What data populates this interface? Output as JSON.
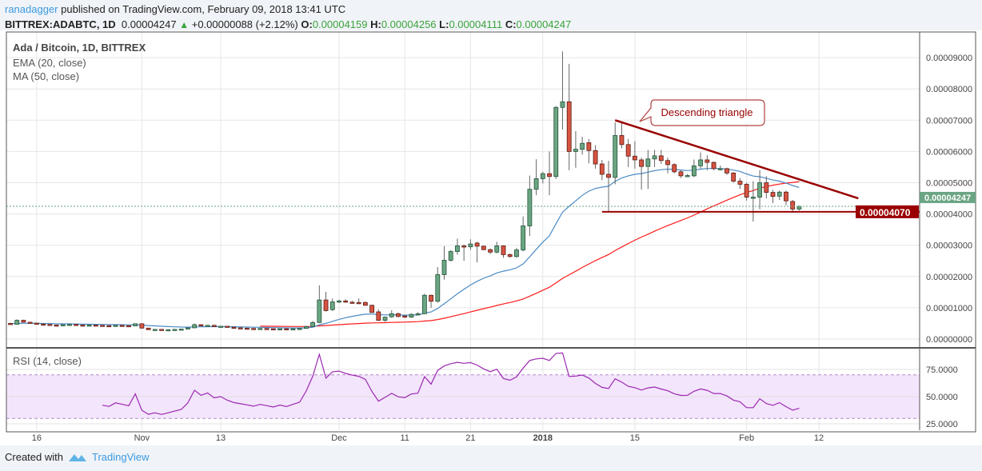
{
  "header": {
    "author": "ranadagger",
    "published_text": "published on TradingView.com, February 09, 2018 13:41 UTC",
    "symbol": "BITTREX:ADABTC, 1D",
    "last": "0.00004247",
    "change": "+0.00000088 (+2.12%)",
    "o_label": "O:",
    "o": "0.00004159",
    "h_label": "H:",
    "h": "0.00004256",
    "l_label": "L:",
    "l": "0.00004111",
    "c_label": "C:",
    "c": "0.00004247",
    "change_icon": "triangle-up-icon"
  },
  "legend": {
    "title": "Ada / Bitcoin, 1D, BITTREX",
    "ema": "EMA (20, close)",
    "ma": "MA (50, close)",
    "rsi": "RSI (14, close)"
  },
  "colors": {
    "up": "#6ba583",
    "down": "#d75442",
    "ema": "#4a8ac4",
    "ma": "#ff1a1a",
    "rsi": "#9c27b0",
    "rsi_band": "#f3e5fc",
    "trend": "#990000",
    "last_price": "#6ba583"
  },
  "footer": {
    "created_with": "Created with",
    "brand": "TradingView"
  },
  "chart_data": {
    "type": "candlestick",
    "price_ticks": [
      "0.00009000",
      "0.00008000",
      "0.00007000",
      "0.00006000",
      "0.00005000",
      "0.00004000",
      "0.00003000",
      "0.00002000",
      "0.00001000",
      "0.00000000"
    ],
    "price_tick_values": [
      9e-05,
      8e-05,
      7e-05,
      6e-05,
      5e-05,
      4e-05,
      3e-05,
      2e-05,
      1e-05,
      0
    ],
    "ylim": [
      0,
      9.2e-05
    ],
    "last_price_label": "0.00004247",
    "last_price": 4.247e-05,
    "support_label": "0.00004070",
    "support": 4.07e-05,
    "support_from": "2018-01-10",
    "trendline": {
      "from": [
        "2018-01-12",
        7e-05
      ],
      "to": [
        "2018-02-18",
        4.5e-05
      ]
    },
    "annotation": {
      "text": "Descending triangle"
    },
    "date_ticks": [
      {
        "label": "16",
        "date": "2017-10-16"
      },
      {
        "label": "Nov",
        "date": "2017-11-01"
      },
      {
        "label": "13",
        "date": "2017-11-13"
      },
      {
        "label": "Dec",
        "date": "2017-12-01"
      },
      {
        "label": "11",
        "date": "2017-12-11"
      },
      {
        "label": "21",
        "date": "2017-12-21"
      },
      {
        "label": "2018",
        "date": "2018-01-01"
      },
      {
        "label": "15",
        "date": "2018-01-15"
      },
      {
        "label": "Feb",
        "date": "2018-02-01"
      },
      {
        "label": "12",
        "date": "2018-02-12"
      }
    ],
    "rsi_ticks": [
      "75.0000",
      "50.0000",
      "25.0000"
    ],
    "rsi_tick_values": [
      75,
      50,
      25
    ],
    "rsi_bands": [
      30,
      70
    ],
    "indicators": {
      "ema_period": 20,
      "ma_period": 50,
      "rsi_period": 14
    },
    "candles_ohlc_format": [
      "date",
      "open",
      "high",
      "low",
      "close"
    ],
    "candles": [
      [
        "2017-10-12",
        5e-06,
        5.2e-06,
        4.7e-06,
        4.9e-06
      ],
      [
        "2017-10-13",
        4.7e-06,
        6.3e-06,
        4.6e-06,
        6e-06
      ],
      [
        "2017-10-14",
        6e-06,
        6.2e-06,
        5.3e-06,
        5.4e-06
      ],
      [
        "2017-10-15",
        5.4e-06,
        5.5e-06,
        5e-06,
        5.1e-06
      ],
      [
        "2017-10-16",
        5.1e-06,
        5.2e-06,
        4.7e-06,
        4.8e-06
      ],
      [
        "2017-10-17",
        4.8e-06,
        5e-06,
        4.6e-06,
        4.7e-06
      ],
      [
        "2017-10-18",
        4.7e-06,
        4.8e-06,
        4.4e-06,
        4.5e-06
      ],
      [
        "2017-10-19",
        4.5e-06,
        4.6e-06,
        4.3e-06,
        4.4e-06
      ],
      [
        "2017-10-20",
        4.4e-06,
        4.8e-06,
        4.3e-06,
        4.6e-06
      ],
      [
        "2017-10-21",
        4.6e-06,
        4.9e-06,
        4.5e-06,
        4.7e-06
      ],
      [
        "2017-10-22",
        4.7e-06,
        4.8e-06,
        4.4e-06,
        4.5e-06
      ],
      [
        "2017-10-23",
        4.5e-06,
        4.6e-06,
        4.2e-06,
        4.3e-06
      ],
      [
        "2017-10-24",
        4.3e-06,
        4.7e-06,
        4.2e-06,
        4.5e-06
      ],
      [
        "2017-10-25",
        4.5e-06,
        4.6e-06,
        4.3e-06,
        4.4e-06
      ],
      [
        "2017-10-26",
        4.4e-06,
        4.5e-06,
        4.2e-06,
        4.3e-06
      ],
      [
        "2017-10-27",
        4.3e-06,
        4.4e-06,
        4.1e-06,
        4.2e-06
      ],
      [
        "2017-10-28",
        4.2e-06,
        4.5e-06,
        4.1e-06,
        4.4e-06
      ],
      [
        "2017-10-29",
        4.4e-06,
        4.5e-06,
        4.2e-06,
        4.3e-06
      ],
      [
        "2017-10-30",
        4.3e-06,
        4.4e-06,
        4.1e-06,
        4.2e-06
      ],
      [
        "2017-10-31",
        4.2e-06,
        5e-06,
        4.1e-06,
        4.9e-06
      ],
      [
        "2017-11-01",
        4.9e-06,
        5e-06,
        3.4e-06,
        3.5e-06
      ],
      [
        "2017-11-02",
        3.5e-06,
        3.6e-06,
        2.9e-06,
        3e-06
      ],
      [
        "2017-11-03",
        3e-06,
        3.2e-06,
        2.9e-06,
        3.1e-06
      ],
      [
        "2017-11-04",
        3.1e-06,
        3.2e-06,
        2.8e-06,
        2.9e-06
      ],
      [
        "2017-11-05",
        2.9e-06,
        3.1e-06,
        2.8e-06,
        3e-06
      ],
      [
        "2017-11-06",
        3e-06,
        3.2e-06,
        2.9e-06,
        3.1e-06
      ],
      [
        "2017-11-07",
        3.1e-06,
        3.3e-06,
        3e-06,
        3.2e-06
      ],
      [
        "2017-11-08",
        3.2e-06,
        3.7e-06,
        3.1e-06,
        3.6e-06
      ],
      [
        "2017-11-09",
        3.6e-06,
        5e-06,
        3.5e-06,
        4.6e-06
      ],
      [
        "2017-11-10",
        4.6e-06,
        4.7e-06,
        4.1e-06,
        4.2e-06
      ],
      [
        "2017-11-11",
        4.2e-06,
        4.5e-06,
        4e-06,
        4.4e-06
      ],
      [
        "2017-11-12",
        4.4e-06,
        4.5e-06,
        3.9e-06,
        4e-06
      ],
      [
        "2017-11-13",
        4e-06,
        4.2e-06,
        3.8e-06,
        4.1e-06
      ],
      [
        "2017-11-14",
        4.1e-06,
        4.2e-06,
        3.7e-06,
        3.8e-06
      ],
      [
        "2017-11-15",
        3.8e-06,
        3.9e-06,
        3.5e-06,
        3.6e-06
      ],
      [
        "2017-11-16",
        3.6e-06,
        3.8e-06,
        3.4e-06,
        3.5e-06
      ],
      [
        "2017-11-17",
        3.5e-06,
        3.6e-06,
        3.3e-06,
        3.4e-06
      ],
      [
        "2017-11-18",
        3.4e-06,
        3.5e-06,
        3.2e-06,
        3.3e-06
      ],
      [
        "2017-11-19",
        3.3e-06,
        3.5e-06,
        3.2e-06,
        3.4e-06
      ],
      [
        "2017-11-20",
        3.4e-06,
        3.5e-06,
        3.2e-06,
        3.3e-06
      ],
      [
        "2017-11-21",
        3.3e-06,
        3.4e-06,
        3.1e-06,
        3.2e-06
      ],
      [
        "2017-11-22",
        3.2e-06,
        3.4e-06,
        3.1e-06,
        3.3e-06
      ],
      [
        "2017-11-23",
        3.3e-06,
        3.4e-06,
        3.1e-06,
        3.2e-06
      ],
      [
        "2017-11-24",
        3.2e-06,
        3.4e-06,
        3.1e-06,
        3.3e-06
      ],
      [
        "2017-11-25",
        3.3e-06,
        3.5e-06,
        3.2e-06,
        3.4e-06
      ],
      [
        "2017-11-26",
        3.4e-06,
        4.2e-06,
        3.3e-06,
        4e-06
      ],
      [
        "2017-11-27",
        4e-06,
        5.8e-06,
        3.9e-06,
        5.3e-06
      ],
      [
        "2017-11-28",
        5.3e-06,
        1.72e-05,
        5.2e-06,
        1.25e-05
      ],
      [
        "2017-11-29",
        1.25e-05,
        1.51e-05,
        8.8e-06,
        9.1e-06
      ],
      [
        "2017-11-30",
        9.4e-06,
        1.3e-05,
        9e-06,
        1.19e-05
      ],
      [
        "2017-12-01",
        1.19e-05,
        1.26e-05,
        1.15e-05,
        1.22e-05
      ],
      [
        "2017-12-02",
        1.22e-05,
        1.27e-05,
        1.16e-05,
        1.18e-05
      ],
      [
        "2017-12-03",
        1.18e-05,
        1.22e-05,
        1.13e-05,
        1.15e-05
      ],
      [
        "2017-12-04",
        1.17e-05,
        1.3e-05,
        1.12e-05,
        1.13e-05
      ],
      [
        "2017-12-05",
        1.17e-05,
        1.2e-05,
        1.06e-05,
        1.08e-05
      ],
      [
        "2017-12-06",
        1.08e-05,
        1.1e-05,
        8.4e-06,
        8.5e-06
      ],
      [
        "2017-12-07",
        8.7e-06,
        9.5e-06,
        5.8e-06,
        6e-06
      ],
      [
        "2017-12-08",
        6e-06,
        7.2e-06,
        5.5e-06,
        7e-06
      ],
      [
        "2017-12-09",
        7.1e-06,
        9.2e-06,
        6.8e-06,
        8.1e-06
      ],
      [
        "2017-12-10",
        8.1e-06,
        8.5e-06,
        7e-06,
        7.2e-06
      ],
      [
        "2017-12-11",
        7.4e-06,
        7.6e-06,
        6.8e-06,
        7e-06
      ],
      [
        "2017-12-12",
        7e-06,
        8.2e-06,
        6.8e-06,
        7.9e-06
      ],
      [
        "2017-12-13",
        7.9e-06,
        8.6e-06,
        7.8e-06,
        8.1e-06
      ],
      [
        "2017-12-14",
        8.1e-06,
        1.45e-05,
        8e-06,
        1.4e-05
      ],
      [
        "2017-12-15",
        1.4e-05,
        1.42e-05,
        1e-05,
        1.21e-05
      ],
      [
        "2017-12-16",
        1.21e-05,
        2.3e-05,
        1.16e-05,
        2.06e-05
      ],
      [
        "2017-12-17",
        2.06e-05,
        2.97e-05,
        1.9e-05,
        2.52e-05
      ],
      [
        "2017-12-18",
        2.52e-05,
        2.85e-05,
        2.48e-05,
        2.8e-05
      ],
      [
        "2017-12-19",
        2.8e-05,
        3.21e-05,
        2.7e-05,
        2.98e-05
      ],
      [
        "2017-12-20",
        2.98e-05,
        3.02e-05,
        2.5e-05,
        2.95e-05
      ],
      [
        "2017-12-21",
        2.95e-05,
        3.19e-05,
        2.85e-05,
        3.04e-05
      ],
      [
        "2017-12-22",
        3.07e-05,
        3.12e-05,
        2.45e-05,
        2.97e-05
      ],
      [
        "2017-12-23",
        2.97e-05,
        2.99e-05,
        2.84e-05,
        2.86e-05
      ],
      [
        "2017-12-24",
        2.86e-05,
        2.9e-05,
        2.72e-05,
        2.78e-05
      ],
      [
        "2017-12-25",
        2.78e-05,
        3.11e-05,
        2.74e-05,
        2.98e-05
      ],
      [
        "2017-12-26",
        2.98e-05,
        3e-05,
        2.6e-05,
        2.7e-05
      ],
      [
        "2017-12-27",
        2.7e-05,
        2.74e-05,
        2.6e-05,
        2.64e-05
      ],
      [
        "2017-12-28",
        2.64e-05,
        2.92e-05,
        2.6e-05,
        2.85e-05
      ],
      [
        "2017-12-29",
        2.85e-05,
        3.92e-05,
        2.8e-05,
        3.62e-05
      ],
      [
        "2017-12-30",
        3.62e-05,
        5.23e-05,
        3.3e-05,
        4.79e-05
      ],
      [
        "2017-12-31",
        4.79e-05,
        5.75e-05,
        4.6e-05,
        5.13e-05
      ],
      [
        "2018-01-01",
        5.13e-05,
        5.35e-05,
        4.98e-05,
        5.29e-05
      ],
      [
        "2018-01-02",
        5.29e-05,
        6e-05,
        4.6e-05,
        5.2e-05
      ],
      [
        "2018-01-03",
        5.2e-05,
        7.45e-05,
        5.12e-05,
        7.41e-05
      ],
      [
        "2018-01-04",
        7.41e-05,
        9.2e-05,
        6.7e-05,
        7.59e-05
      ],
      [
        "2018-01-05",
        7.59e-05,
        8.8e-05,
        5.4e-05,
        6e-05
      ],
      [
        "2018-01-06",
        6e-05,
        6.65e-05,
        5.48e-05,
        6.07e-05
      ],
      [
        "2018-01-07",
        6.07e-05,
        6.47e-05,
        5.9e-05,
        6.26e-05
      ],
      [
        "2018-01-08",
        6.28e-05,
        6.4e-05,
        5.62e-05,
        6.03e-05
      ],
      [
        "2018-01-09",
        6.03e-05,
        6.2e-05,
        5.45e-05,
        5.6e-05
      ],
      [
        "2018-01-10",
        5.6e-05,
        5.73e-05,
        5.08e-05,
        5.27e-05
      ],
      [
        "2018-01-11",
        5.27e-05,
        5.7e-05,
        4.07e-05,
        5.17e-05
      ],
      [
        "2018-01-12",
        5.17e-05,
        6.93e-05,
        4.95e-05,
        6.51e-05
      ],
      [
        "2018-01-13",
        6.51e-05,
        6.93e-05,
        6.1e-05,
        6.22e-05
      ],
      [
        "2018-01-14",
        6.22e-05,
        6.4e-05,
        5.5e-05,
        5.85e-05
      ],
      [
        "2018-01-15",
        5.85e-05,
        6.33e-05,
        5.45e-05,
        5.73e-05
      ],
      [
        "2018-01-16",
        5.73e-05,
        5.8e-05,
        4.78e-05,
        5.52e-05
      ],
      [
        "2018-01-17",
        5.52e-05,
        6.05e-05,
        4.8e-05,
        5.76e-05
      ],
      [
        "2018-01-18",
        5.76e-05,
        6.05e-05,
        5.5e-05,
        5.86e-05
      ],
      [
        "2018-01-19",
        5.86e-05,
        6.05e-05,
        5.6e-05,
        5.71e-05
      ],
      [
        "2018-01-20",
        5.71e-05,
        5.8e-05,
        5.3e-05,
        5.58e-05
      ],
      [
        "2018-01-21",
        5.58e-05,
        5.62e-05,
        5.3e-05,
        5.35e-05
      ],
      [
        "2018-01-22",
        5.35e-05,
        5.4e-05,
        5.15e-05,
        5.22e-05
      ],
      [
        "2018-01-23",
        5.22e-05,
        5.28e-05,
        5.18e-05,
        5.23e-05
      ],
      [
        "2018-01-24",
        5.22e-05,
        5.74e-05,
        5.18e-05,
        5.54e-05
      ],
      [
        "2018-01-25",
        5.54e-05,
        5.97e-05,
        5.45e-05,
        5.73e-05
      ],
      [
        "2018-01-26",
        5.73e-05,
        5.88e-05,
        5.4e-05,
        5.65e-05
      ],
      [
        "2018-01-27",
        5.65e-05,
        5.68e-05,
        5.4e-05,
        5.45e-05
      ],
      [
        "2018-01-28",
        5.45e-05,
        5.55e-05,
        5.4e-05,
        5.45e-05
      ],
      [
        "2018-01-29",
        5.45e-05,
        5.48e-05,
        5.25e-05,
        5.31e-05
      ],
      [
        "2018-01-30",
        5.31e-05,
        5.34e-05,
        5e-05,
        5.05e-05
      ],
      [
        "2018-01-31",
        5.05e-05,
        5.15e-05,
        4.8e-05,
        4.95e-05
      ],
      [
        "2018-02-01",
        4.95e-05,
        5e-05,
        4.43e-05,
        4.54e-05
      ],
      [
        "2018-02-02",
        4.54e-05,
        5.05e-05,
        3.76e-05,
        4.54e-05
      ],
      [
        "2018-02-03",
        4.54e-05,
        5.4e-05,
        4.15e-05,
        5e-05
      ],
      [
        "2018-02-04",
        5e-05,
        5.21e-05,
        4.5e-05,
        4.69e-05
      ],
      [
        "2018-02-05",
        4.69e-05,
        4.77e-05,
        4.35e-05,
        4.56e-05
      ],
      [
        "2018-02-06",
        4.57e-05,
        4.75e-05,
        4.45e-05,
        4.7e-05
      ],
      [
        "2018-02-07",
        4.7e-05,
        4.75e-05,
        4.28e-05,
        4.42e-05
      ],
      [
        "2018-02-08",
        4.4e-05,
        4.45e-05,
        4.04e-05,
        4.159e-05
      ],
      [
        "2018-02-09",
        4.159e-05,
        4.256e-05,
        4.111e-05,
        4.247e-05
      ]
    ]
  }
}
